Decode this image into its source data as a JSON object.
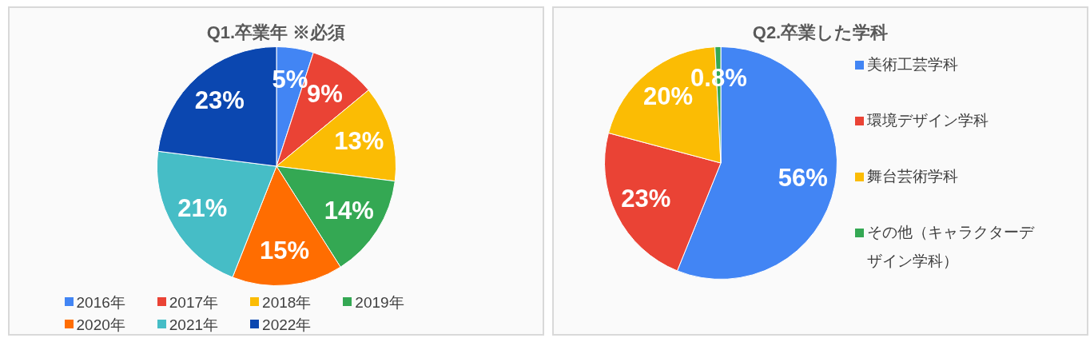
{
  "chart_data": [
    {
      "type": "pie",
      "title": "Q1.卒業年 ※必須",
      "categories": [
        "2016年",
        "2017年",
        "2018年",
        "2019年",
        "2020年",
        "2021年",
        "2022年"
      ],
      "values": [
        5,
        9,
        13,
        14,
        15,
        21,
        23
      ],
      "value_labels": [
        "5%",
        "9%",
        "13%",
        "14%",
        "15%",
        "21%",
        "23%"
      ],
      "colors": [
        "#4285f4",
        "#ea4335",
        "#fbbc04",
        "#34a853",
        "#ff6d01",
        "#46bdc6",
        "#0b47b0"
      ],
      "legend": "bottom"
    },
    {
      "type": "pie",
      "title": "Q2.卒業した学科",
      "categories": [
        "美術工芸学科",
        "環境デザイン学科",
        "舞台芸術学科",
        "その他（キャラクターデザイン学科）"
      ],
      "values": [
        56,
        23,
        20,
        0.8
      ],
      "value_labels": [
        "56%",
        "23%",
        "20%",
        "0.8%"
      ],
      "colors": [
        "#4285f4",
        "#ea4335",
        "#fbbc04",
        "#34a853"
      ],
      "legend": "right"
    }
  ]
}
